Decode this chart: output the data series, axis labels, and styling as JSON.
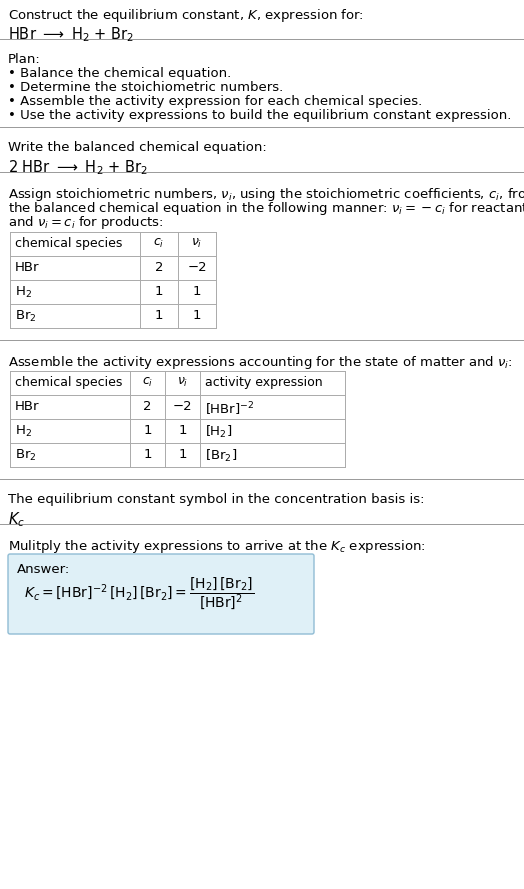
{
  "bg_color": "#ffffff",
  "text_color": "#000000",
  "section1_title": "Construct the equilibrium constant, $K$, expression for:",
  "section1_reaction": "HBr $\\longrightarrow$ H$_2$ + Br$_2$",
  "section2_title": "Plan:",
  "section2_bullets": [
    "• Balance the chemical equation.",
    "• Determine the stoichiometric numbers.",
    "• Assemble the activity expression for each chemical species.",
    "• Use the activity expressions to build the equilibrium constant expression."
  ],
  "section3_title": "Write the balanced chemical equation:",
  "section3_equation": "2 HBr $\\longrightarrow$ H$_2$ + Br$_2$",
  "section4_title_lines": [
    "Assign stoichiometric numbers, $\\nu_i$, using the stoichiometric coefficients, $c_i$, from",
    "the balanced chemical equation in the following manner: $\\nu_i = -c_i$ for reactants",
    "and $\\nu_i = c_i$ for products:"
  ],
  "table1_headers": [
    "chemical species",
    "$c_i$",
    "$\\nu_i$"
  ],
  "table1_rows": [
    [
      "HBr",
      "2",
      "−2"
    ],
    [
      "H$_2$",
      "1",
      "1"
    ],
    [
      "Br$_2$",
      "1",
      "1"
    ]
  ],
  "section5_title": "Assemble the activity expressions accounting for the state of matter and $\\nu_i$:",
  "table2_headers": [
    "chemical species",
    "$c_i$",
    "$\\nu_i$",
    "activity expression"
  ],
  "table2_rows": [
    [
      "HBr",
      "2",
      "−2",
      "[HBr]$^{-2}$"
    ],
    [
      "H$_2$",
      "1",
      "1",
      "[H$_2$]"
    ],
    [
      "Br$_2$",
      "1",
      "1",
      "[Br$_2$]"
    ]
  ],
  "section6_title": "The equilibrium constant symbol in the concentration basis is:",
  "section6_symbol": "$K_c$",
  "section7_title": "Mulitply the activity expressions to arrive at the $K_c$ expression:",
  "answer_label": "Answer:",
  "answer_box_color": "#dff0f7",
  "answer_box_border": "#90bcd4",
  "font_size": 9.5,
  "font_size_small": 9.0,
  "font_size_reaction": 10.5
}
